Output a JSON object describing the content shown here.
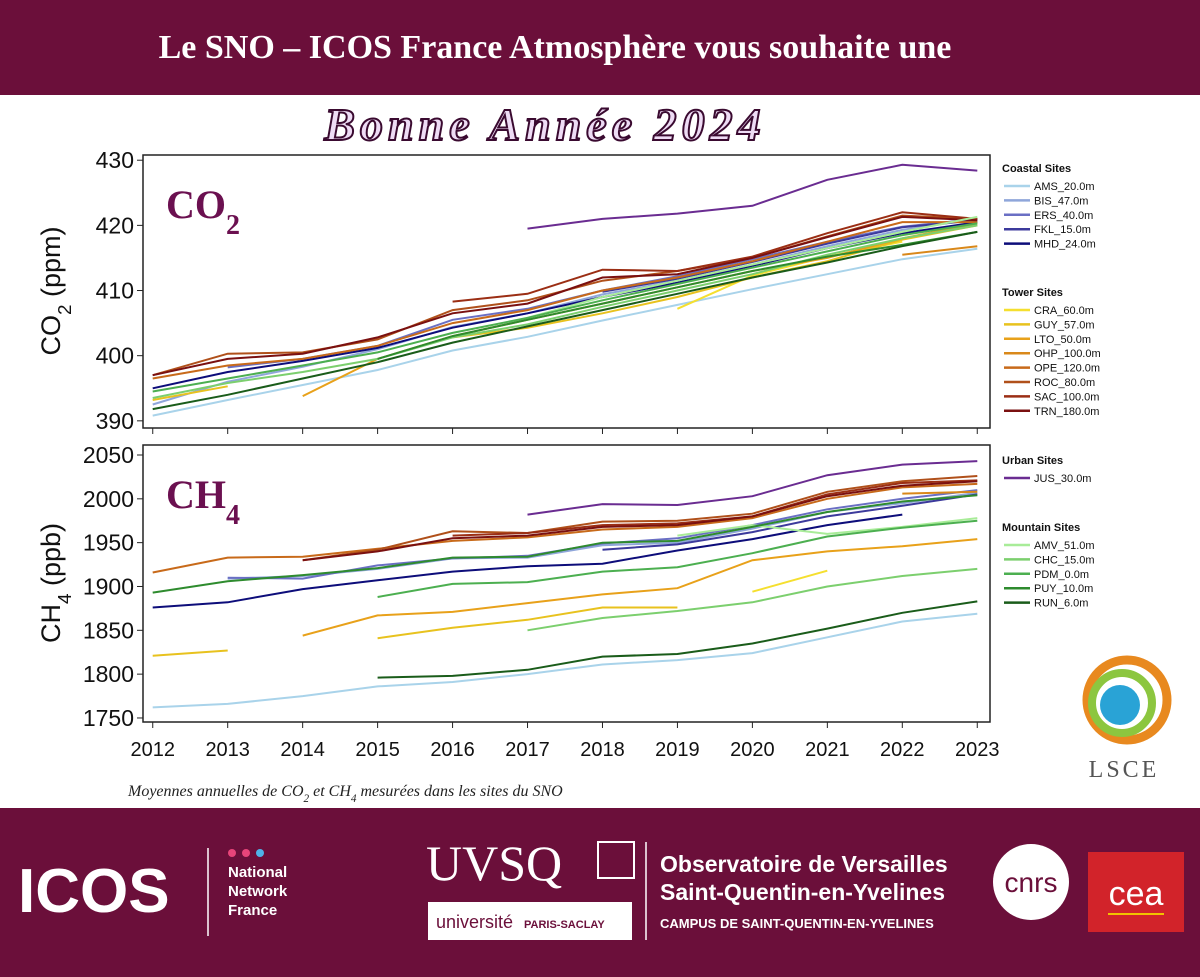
{
  "header": {
    "line1": "Le SNO – ICOS France Atmosphère vous souhaite une",
    "line2": "Bonne Année 2024"
  },
  "chart_data": [
    {
      "type": "line",
      "title": [
        {
          "text": "CO"
        },
        {
          "text": "2",
          "sub": true
        }
      ],
      "ylabel": [
        {
          "text": "CO"
        },
        {
          "text": "2",
          "sub": true
        },
        {
          "text": " (ppm)"
        }
      ],
      "x": [
        2012,
        2013,
        2014,
        2015,
        2016,
        2017,
        2018,
        2019,
        2020,
        2021,
        2022,
        2023
      ],
      "xlim": [
        2011.87,
        2023.17
      ],
      "xticks": [
        2012,
        2013,
        2014,
        2015,
        2016,
        2017,
        2018,
        2019,
        2020,
        2021,
        2022,
        2023
      ],
      "show_xtick_labels": false,
      "ylim": [
        388.9,
        430.8
      ],
      "yticks": [
        390,
        400,
        410,
        420,
        430
      ],
      "series": [
        {
          "name": "AMS_20.0m",
          "group": "Coastal Sites",
          "color": "#a9d3ea",
          "values": [
            390.8,
            393.2,
            395.5,
            397.8,
            400.8,
            402.9,
            405.4,
            407.8,
            410.2,
            412.5,
            414.8,
            416.4
          ]
        },
        {
          "name": "BIS_47.0m",
          "group": "Coastal Sites",
          "color": "#8fa6da",
          "values": [
            392.5,
            396,
            398.3,
            401,
            404.4,
            406.5,
            409.4,
            411.5,
            414,
            416.8,
            419.3,
            421
          ]
        },
        {
          "name": "ERS_40.0m",
          "group": "Coastal Sites",
          "color": "#6a6fc4",
          "values": [
            null,
            398.2,
            399.5,
            401.5,
            405.5,
            407.2,
            410,
            412.2,
            414.8,
            417.5,
            419.8,
            421
          ]
        },
        {
          "name": "FKL_15.0m",
          "group": "Coastal Sites",
          "color": "#3c3a9c",
          "values": [
            null,
            null,
            null,
            null,
            null,
            null,
            409.8,
            411.8,
            414.4,
            417.2,
            419.7,
            420.8
          ]
        },
        {
          "name": "MHD_24.0m",
          "group": "Coastal Sites",
          "color": "#0d0d7a",
          "values": [
            395,
            397.5,
            399.2,
            401.2,
            404.3,
            406.5,
            409,
            411.2,
            413.8,
            416.5,
            418.8,
            420.5
          ]
        },
        {
          "name": "CRA_60.0m",
          "group": "Tower Sites",
          "color": "#f5df2f",
          "values": [
            null,
            null,
            null,
            null,
            null,
            null,
            null,
            407.2,
            412.3,
            415.2,
            417.5,
            null
          ]
        },
        {
          "name": "GUY_57.0m",
          "group": "Tower Sites",
          "color": "#e8c21e",
          "values": [
            393.2,
            395.3,
            null,
            null,
            402.8,
            404.3,
            406.5,
            409,
            412,
            414.5,
            417.8,
            420
          ]
        },
        {
          "name": "LTO_50.0m",
          "group": "Tower Sites",
          "color": "#e8a11a",
          "values": [
            null,
            null,
            393.8,
            399.5,
            403,
            405.5,
            408,
            410.5,
            413,
            415,
            418,
            420.3
          ]
        },
        {
          "name": "OHP_100.0m",
          "group": "Tower Sites",
          "color": "#d9881a",
          "values": [
            null,
            null,
            null,
            null,
            null,
            null,
            null,
            null,
            null,
            null,
            415.5,
            416.8
          ]
        },
        {
          "name": "OPE_120.0m",
          "group": "Tower Sites",
          "color": "#c86a1a",
          "values": [
            396.5,
            398.5,
            399.5,
            401.5,
            405,
            407,
            410,
            412,
            414.5,
            417.5,
            420.5,
            420.5
          ]
        },
        {
          "name": "ROC_80.0m",
          "group": "Tower Sites",
          "color": "#b0501a",
          "values": [
            397,
            400.3,
            400.5,
            402.5,
            407,
            408.5,
            411.5,
            413,
            415,
            418.3,
            421.5,
            421
          ]
        },
        {
          "name": "SAC_100.0m",
          "group": "Tower Sites",
          "color": "#9b2e14",
          "values": [
            null,
            null,
            null,
            null,
            408.3,
            409.5,
            413.2,
            413,
            415.2,
            418.8,
            422,
            421
          ]
        },
        {
          "name": "TRN_180.0m",
          "group": "Tower Sites",
          "color": "#7a1010",
          "values": [
            397,
            399.5,
            400.3,
            402.8,
            406.5,
            408,
            412,
            412.5,
            415,
            418.2,
            421.3,
            420.8
          ]
        },
        {
          "name": "JUS_30.0m",
          "group": "Urban Sites",
          "color": "#6a2c91",
          "values": [
            null,
            null,
            null,
            null,
            null,
            419.5,
            421,
            421.8,
            423,
            427,
            429.3,
            428.4
          ]
        },
        {
          "name": "AMV_51.0m",
          "group": "Mountain Sites",
          "color": "#a8ec98",
          "values": [
            null,
            null,
            null,
            null,
            null,
            405.8,
            409,
            411.5,
            414,
            416.5,
            419,
            421.3
          ]
        },
        {
          "name": "CHC_15.0m",
          "group": "Mountain Sites",
          "color": "#7ccf6e",
          "values": [
            393.5,
            395.8,
            397.5,
            399.5,
            402.8,
            404.8,
            407.5,
            410,
            412.5,
            415.5,
            418,
            420
          ]
        },
        {
          "name": "PDM_0.0m",
          "group": "Mountain Sites",
          "color": "#4caf50",
          "values": [
            394.5,
            396.5,
            398.5,
            400.5,
            403.5,
            405.8,
            408.5,
            411,
            413.5,
            416,
            418.5,
            420.3
          ]
        },
        {
          "name": "PUY_10.0m",
          "group": "Mountain Sites",
          "color": "#2e8b2e",
          "values": [
            null,
            null,
            null,
            399.5,
            403,
            405.5,
            408,
            410.5,
            413,
            415.2,
            417,
            419
          ]
        },
        {
          "name": "RUN_6.0m",
          "group": "Mountain Sites",
          "color": "#1a5c1a",
          "values": [
            391.8,
            394,
            396.5,
            399,
            402,
            404.5,
            407,
            409.5,
            412,
            414.3,
            416.8,
            419
          ]
        }
      ]
    },
    {
      "type": "line",
      "title": [
        {
          "text": "CH"
        },
        {
          "text": "4",
          "sub": true
        }
      ],
      "ylabel": [
        {
          "text": "CH"
        },
        {
          "text": "4",
          "sub": true
        },
        {
          "text": " (ppb)"
        }
      ],
      "x": [
        2012,
        2013,
        2014,
        2015,
        2016,
        2017,
        2018,
        2019,
        2020,
        2021,
        2022,
        2023
      ],
      "xlim": [
        2011.87,
        2023.17
      ],
      "xticks": [
        2012,
        2013,
        2014,
        2015,
        2016,
        2017,
        2018,
        2019,
        2020,
        2021,
        2022,
        2023
      ],
      "show_xtick_labels": true,
      "ylim": [
        1745.4,
        2061.4
      ],
      "yticks": [
        1750,
        1800,
        1850,
        1900,
        1950,
        2000,
        2050
      ],
      "series": [
        {
          "name": "AMS_20.0m",
          "color": "#a9d3ea",
          "values": [
            1762,
            1766,
            1775,
            1786,
            1791,
            1800,
            1811,
            1816,
            1824,
            1842,
            1860,
            1869
          ]
        },
        {
          "name": "BIS_47.0m",
          "color": "#8fa6da",
          "values": [
            null,
            1909,
            1912,
            1920,
            1932,
            1933,
            1947,
            1950,
            1966,
            1985,
            1995,
            2007
          ]
        },
        {
          "name": "ERS_40.0m",
          "color": "#6a6fc4",
          "values": [
            null,
            1910,
            1909,
            1924,
            1932,
            1935,
            1949,
            1955,
            1970,
            1988,
            2000,
            2010
          ]
        },
        {
          "name": "FKL_15.0m",
          "color": "#3c3a9c",
          "values": [
            null,
            null,
            null,
            null,
            null,
            null,
            1942,
            1948,
            1962,
            1980,
            1992,
            2005
          ]
        },
        {
          "name": "MHD_24.0m",
          "color": "#0d0d7a",
          "values": [
            1876,
            1882,
            1897,
            1907,
            1917,
            1923,
            1926,
            1941,
            1954,
            1970,
            1982,
            null
          ]
        },
        {
          "name": "CRA_60.0m",
          "color": "#f5df2f",
          "values": [
            null,
            null,
            null,
            null,
            null,
            null,
            null,
            null,
            1894,
            1918,
            null,
            null
          ]
        },
        {
          "name": "GUY_57.0m",
          "color": "#e8c21e",
          "values": [
            1821,
            1827,
            null,
            1841,
            1853,
            1862,
            1876,
            1876,
            null,
            null,
            null,
            null
          ]
        },
        {
          "name": "LTO_50.0m",
          "color": "#e8a11a",
          "values": [
            null,
            null,
            1844,
            1867,
            1871,
            1881,
            1891,
            1898,
            1930,
            1940,
            1946,
            1954
          ]
        },
        {
          "name": "OHP_100.0m",
          "color": "#d9881a",
          "values": [
            null,
            null,
            null,
            null,
            null,
            null,
            null,
            null,
            null,
            null,
            2006,
            2008
          ]
        },
        {
          "name": "OPE_120.0m",
          "color": "#c86a1a",
          "values": [
            1916,
            1933,
            1934,
            1943,
            1952,
            1956,
            1965,
            1968,
            1978,
            2000,
            2013,
            2017
          ]
        },
        {
          "name": "ROC_80.0m",
          "color": "#b0501a",
          "values": [
            null,
            null,
            1930,
            1942,
            1963,
            1961,
            1974,
            1975,
            1983,
            2008,
            2020,
            2026
          ]
        },
        {
          "name": "SAC_100.0m",
          "color": "#9b2e14",
          "values": [
            null,
            null,
            null,
            null,
            1958,
            1961,
            1970,
            1972,
            1980,
            2005,
            2018,
            2021
          ]
        },
        {
          "name": "TRN_180.0m",
          "color": "#7a1010",
          "values": [
            null,
            null,
            1930,
            1940,
            1955,
            1958,
            1968,
            1970,
            1980,
            2003,
            2015,
            2020
          ]
        },
        {
          "name": "JUS_30.0m",
          "color": "#6a2c91",
          "values": [
            null,
            null,
            null,
            null,
            null,
            1982,
            1994,
            1993,
            2003,
            2027,
            2039,
            2043
          ]
        },
        {
          "name": "AMV_51.0m",
          "color": "#a8ec98",
          "values": [
            null,
            null,
            null,
            null,
            null,
            null,
            null,
            1958,
            1970,
            1960,
            1968,
            1978
          ]
        },
        {
          "name": "CHC_15.0m",
          "color": "#7ccf6e",
          "values": [
            null,
            null,
            null,
            null,
            null,
            1850,
            1864,
            1872,
            1882,
            1900,
            1912,
            1920
          ]
        },
        {
          "name": "PDM_0.0m",
          "color": "#4caf50",
          "values": [
            null,
            null,
            null,
            1888,
            1903,
            1905,
            1917,
            1922,
            1938,
            1957,
            1967,
            1975
          ]
        },
        {
          "name": "PUY_10.0m",
          "color": "#2e8b2e",
          "values": [
            1893,
            1906,
            1913,
            1921,
            1933,
            1934,
            1950,
            1952,
            1968,
            1985,
            1997,
            2004
          ]
        },
        {
          "name": "RUN_6.0m",
          "color": "#1a5c1a",
          "values": [
            null,
            null,
            null,
            1796,
            1798,
            1805,
            1820,
            1823,
            1835,
            1852,
            1870,
            1883
          ]
        }
      ]
    }
  ],
  "caption": [
    {
      "text": "Moyennes annuelles de CO"
    },
    {
      "text": "2",
      "sub": true
    },
    {
      "text": " et CH"
    },
    {
      "text": "4",
      "sub": true
    },
    {
      "text": " mesurées dans les sites du SNO"
    }
  ],
  "lsce": "LSCE",
  "footer": {
    "icos": "ICOS",
    "network": [
      "National",
      "Network",
      "France"
    ],
    "uvsq": "UVSQ",
    "universite": "université",
    "paris_saclay": "PARIS-SACLAY",
    "observatoire": [
      "Observatoire de Versailles",
      "Saint-Quentin-en-Yvelines"
    ],
    "campus": "CAMPUS DE SAINT-QUENTIN-EN-YVELINES",
    "cnrs": "cnrs",
    "cea": "cea"
  }
}
